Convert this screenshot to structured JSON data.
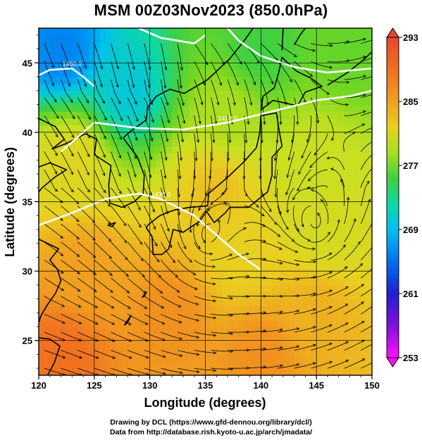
{
  "title": "MSM 00Z03Nov2023 (850.0hPa)",
  "xlabel": "Longitude (degrees)",
  "ylabel": "Latitude  (degrees)",
  "x_ticks": [
    "120",
    "125",
    "130",
    "135",
    "140",
    "145",
    "150"
  ],
  "y_ticks": [
    "25",
    "30",
    "35",
    "40",
    "45"
  ],
  "colorbar": {
    "tick_labels": [
      "293",
      "285",
      "277",
      "269",
      "261",
      "253"
    ],
    "min": 253,
    "max": 293,
    "colors": [
      "#ff00ff",
      "#2a00d8",
      "#0060ff",
      "#00b8f0",
      "#00e0a0",
      "#20d040",
      "#70d820",
      "#c8e020",
      "#e8c020",
      "#f49020",
      "#f06820",
      "#e84830"
    ]
  },
  "contour_labels": [
    "1430.0",
    "1450.0",
    "1410.0"
  ],
  "credits": {
    "line1": "Drawing by DCL (https://www.gfd-dennou.org/library/dcl/)",
    "line2": "Data from http://database.rish.kyoto-u.ac.jp/arch/jmadata/"
  },
  "chart_data": {
    "type": "heatmap",
    "title": "MSM 00Z03Nov2023 (850.0hPa)",
    "xlabel": "Longitude (degrees)",
    "ylabel": "Latitude  (degrees)",
    "xlim": [
      120,
      150
    ],
    "ylim": [
      22.5,
      47.5
    ],
    "x_ticks": [
      120,
      125,
      130,
      135,
      140,
      145,
      150
    ],
    "y_ticks": [
      25,
      30,
      35,
      40,
      45
    ],
    "colorbar_range": [
      253,
      293
    ],
    "colorbar_ticks": [
      293,
      285,
      277,
      269,
      261,
      253
    ],
    "temperature_samples": [
      {
        "lon": 122,
        "lat": 46,
        "value": 266
      },
      {
        "lon": 128,
        "lat": 43,
        "value": 270
      },
      {
        "lon": 140,
        "lat": 46,
        "value": 275
      },
      {
        "lon": 148,
        "lat": 46,
        "value": 277
      },
      {
        "lon": 137,
        "lat": 41,
        "value": 280
      },
      {
        "lon": 123,
        "lat": 38,
        "value": 283
      },
      {
        "lon": 145,
        "lat": 38,
        "value": 281
      },
      {
        "lon": 136,
        "lat": 36,
        "value": 285
      },
      {
        "lon": 146,
        "lat": 33,
        "value": 282
      },
      {
        "lon": 138,
        "lat": 31,
        "value": 284
      },
      {
        "lon": 124,
        "lat": 30,
        "value": 287
      },
      {
        "lon": 132,
        "lat": 27,
        "value": 288
      },
      {
        "lon": 145,
        "lat": 27,
        "value": 286
      },
      {
        "lon": 122,
        "lat": 24,
        "value": 290
      },
      {
        "lon": 140,
        "lat": 24,
        "value": 288
      }
    ],
    "contours": [
      {
        "label": "1430.0",
        "points": [
          [
            120,
            33.3
          ],
          [
            123,
            34.2
          ],
          [
            126,
            35.2
          ],
          [
            129,
            35.6
          ],
          [
            131,
            35.2
          ],
          [
            134,
            34.0
          ],
          [
            136,
            32.6
          ],
          [
            138,
            31.2
          ],
          [
            140,
            30.1
          ]
        ]
      },
      {
        "label": "1450.0",
        "points": [
          [
            120,
            44.1
          ],
          [
            121,
            44.5
          ],
          [
            123,
            44.6
          ],
          [
            124,
            44.0
          ],
          [
            125,
            43.3
          ]
        ]
      },
      {
        "label": "1410.0",
        "points": [
          [
            122,
            38.6
          ],
          [
            125,
            40.7
          ],
          [
            129,
            40.3
          ],
          [
            133,
            40.2
          ],
          [
            137,
            40.7
          ],
          [
            141,
            41.5
          ],
          [
            145,
            42.3
          ],
          [
            148,
            42.6
          ],
          [
            150,
            43.0
          ]
        ]
      },
      {
        "label": "",
        "points": [
          [
            129,
            47.5
          ],
          [
            131,
            46.8
          ],
          [
            134,
            46.4
          ],
          [
            135,
            47.0
          ]
        ]
      },
      {
        "label": "",
        "points": [
          [
            137,
            47.5
          ],
          [
            138,
            46.6
          ],
          [
            140,
            45.5
          ],
          [
            143,
            44.7
          ],
          [
            146,
            44.3
          ],
          [
            150,
            44.6
          ]
        ]
      }
    ],
    "circulation_centers": [
      {
        "lon": 145,
        "lat": 33.2,
        "type": "cyclonic"
      },
      {
        "lon": 135,
        "lat": 32.2,
        "type": "cyclonic"
      }
    ]
  }
}
